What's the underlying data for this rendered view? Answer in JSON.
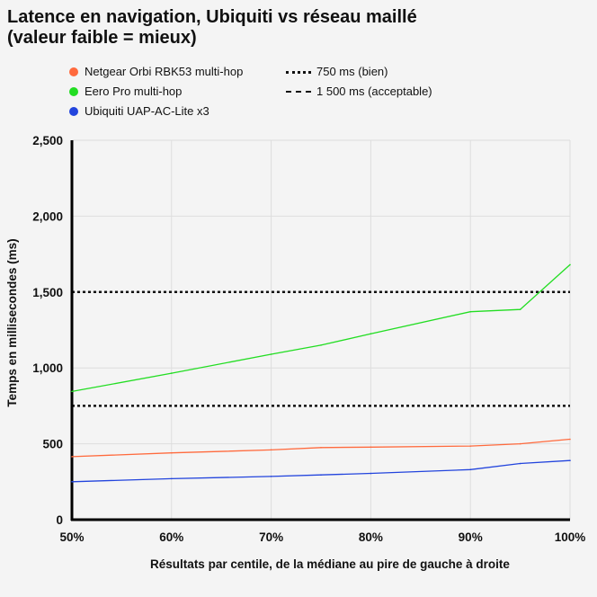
{
  "chart_data": {
    "type": "line",
    "title": "Latence en navigation, Ubiquiti vs réseau maillé\n(valeur faible = mieux)",
    "xlabel": "Résultats par centile, de la médiane au pire de gauche à droite",
    "ylabel": "Temps en millisecondes (ms)",
    "x": [
      50,
      60,
      70,
      75,
      80,
      90,
      95,
      100
    ],
    "x_ticks": [
      "50%",
      "60%",
      "70%",
      "80%",
      "90%",
      "100%"
    ],
    "x_tick_values": [
      50,
      60,
      70,
      80,
      90,
      100
    ],
    "y_ticks": [
      "0",
      "500",
      "1,000",
      "1,500",
      "2,000",
      "2,500"
    ],
    "y_tick_values": [
      0,
      500,
      1000,
      1500,
      2000,
      2500
    ],
    "xlim": [
      50,
      100
    ],
    "ylim": [
      0,
      2500
    ],
    "grid": true,
    "legend_position": "top",
    "series": [
      {
        "name": "Netgear Orbi RBK53 multi-hop",
        "color": "#ff6a3d",
        "values": [
          415,
          440,
          460,
          475,
          478,
          485,
          500,
          530
        ]
      },
      {
        "name": "Eero Pro multi-hop",
        "color": "#22dd22",
        "values": [
          845,
          965,
          1090,
          1150,
          1225,
          1370,
          1385,
          1680
        ]
      },
      {
        "name": "Ubiquiti UAP-AC-Lite x3",
        "color": "#2244dd",
        "values": [
          250,
          270,
          285,
          295,
          305,
          330,
          370,
          390
        ]
      }
    ],
    "reference_lines": [
      {
        "label": "750 ms (bien)",
        "value": 750,
        "style": "dotted"
      },
      {
        "label": "1 500 ms (acceptable)",
        "value": 1500,
        "style": "dashed"
      }
    ]
  }
}
